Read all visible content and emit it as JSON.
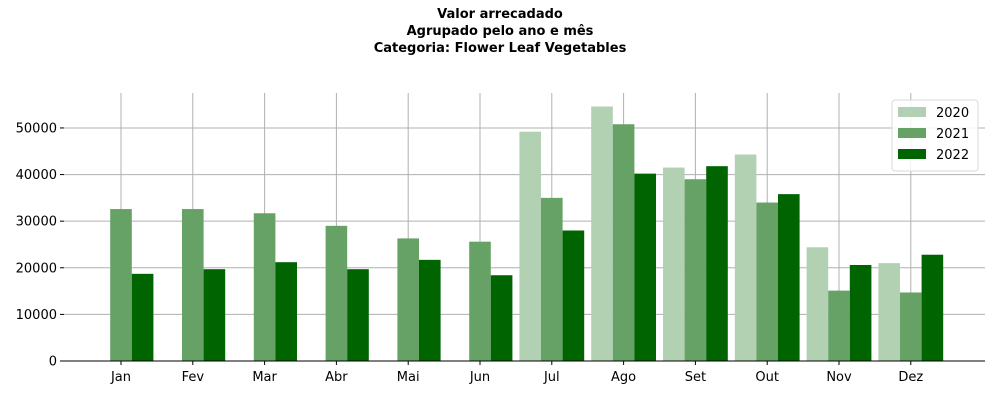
{
  "chart_data": {
    "type": "bar",
    "title_lines": [
      "Valor arrecadado",
      "Agrupado pelo ano e mês",
      "Categoria: Flower Leaf Vegetables"
    ],
    "xlabel": "",
    "ylabel": "",
    "categories": [
      "Jan",
      "Fev",
      "Mar",
      "Abr",
      "Mai",
      "Jun",
      "Jul",
      "Ago",
      "Set",
      "Out",
      "Nov",
      "Dez"
    ],
    "series": [
      {
        "name": "2020",
        "color": "#b2d0b2",
        "values": [
          null,
          null,
          null,
          null,
          null,
          null,
          49200,
          54600,
          41500,
          44300,
          24400,
          21000
        ]
      },
      {
        "name": "2021",
        "color": "#66a266",
        "values": [
          32600,
          32600,
          31700,
          29000,
          26300,
          25600,
          35000,
          50800,
          39000,
          34000,
          15100,
          14700
        ]
      },
      {
        "name": "2022",
        "color": "#006400",
        "values": [
          18700,
          19700,
          21200,
          19700,
          21700,
          18400,
          28000,
          40200,
          41800,
          35800,
          20600,
          22800
        ]
      }
    ],
    "ylim": [
      0,
      57500
    ],
    "yticks": [
      0,
      10000,
      20000,
      30000,
      40000,
      50000
    ],
    "ytick_labels": [
      "0",
      "10000",
      "20000",
      "30000",
      "40000",
      "50000"
    ],
    "grid": true,
    "legend_position": "top-right"
  }
}
